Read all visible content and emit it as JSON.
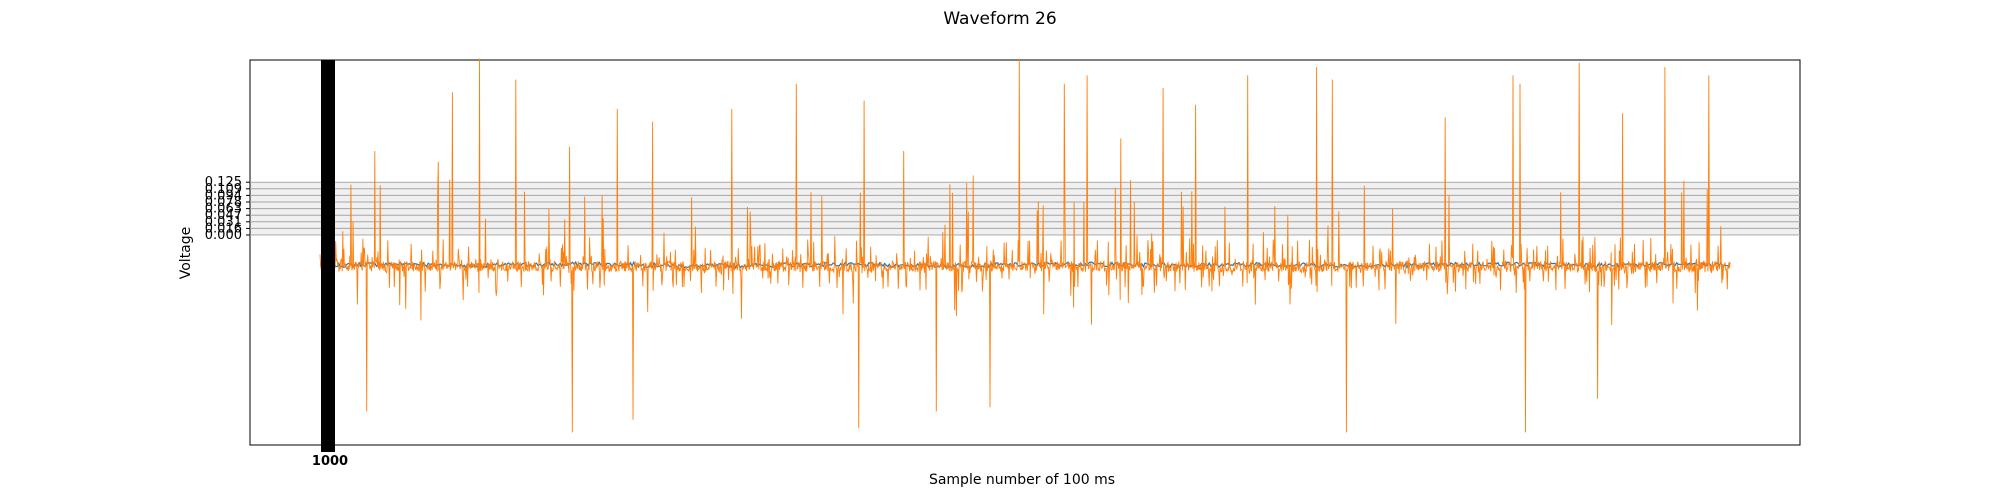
{
  "chart_data": {
    "type": "line",
    "title": "Waveform 26",
    "xlabel": "Sample number of 100 ms",
    "ylabel": "Voltage",
    "grid": true,
    "legend": "none",
    "y_ticks": [
      "0.000",
      "0.016",
      "0.031",
      "0.047",
      "0.063",
      "0.078",
      "0.094",
      "0.109",
      "0.125"
    ],
    "x_tick_label": "1000",
    "series": [
      {
        "color": "#1f77b4",
        "baseline": -0.07,
        "values": [
          -0.072,
          -0.07,
          -0.069,
          -0.071,
          -0.073,
          -0.071,
          -0.07,
          -0.069,
          -0.07,
          -0.072,
          -0.074,
          -0.073,
          -0.072,
          -0.071,
          -0.07,
          -0.071,
          -0.072,
          -0.073,
          -0.072,
          -0.071,
          -0.07,
          -0.069,
          -0.07,
          -0.071,
          -0.072,
          -0.071,
          -0.07,
          -0.071,
          -0.072,
          -0.073,
          -0.072,
          -0.071,
          -0.07,
          -0.069,
          -0.07,
          -0.071,
          -0.072,
          -0.071,
          -0.07,
          -0.071
        ]
      },
      {
        "color": "#ff7f0e",
        "baseline": -0.075,
        "positive_spike_positions": [
          0.004,
          0.022,
          0.039,
          0.094,
          0.113,
          0.139,
          0.177,
          0.211,
          0.236,
          0.292,
          0.338,
          0.386,
          0.414,
          0.496,
          0.528,
          0.544,
          0.568,
          0.598,
          0.621,
          0.658,
          0.707,
          0.718,
          0.798,
          0.846,
          0.851,
          0.893,
          0.924,
          0.954,
          0.985
        ],
        "positive_spike_values": [
          0.01,
          0.12,
          0.2,
          0.34,
          0.42,
          0.37,
          0.21,
          0.3,
          0.27,
          0.3,
          0.36,
          0.32,
          0.2,
          0.42,
          0.36,
          0.38,
          0.23,
          0.35,
          0.31,
          0.38,
          0.4,
          0.37,
          0.28,
          0.38,
          0.36,
          0.41,
          0.29,
          0.4,
          0.38
        ],
        "negative_spike_positions": [
          0.01,
          0.033,
          0.179,
          0.222,
          0.382,
          0.437,
          0.475,
          0.728,
          0.855,
          0.906
        ],
        "negative_spike_values": [
          -0.3,
          -0.42,
          -0.47,
          -0.44,
          -0.46,
          -0.42,
          -0.41,
          -0.47,
          -0.47,
          -0.39
        ]
      }
    ]
  }
}
